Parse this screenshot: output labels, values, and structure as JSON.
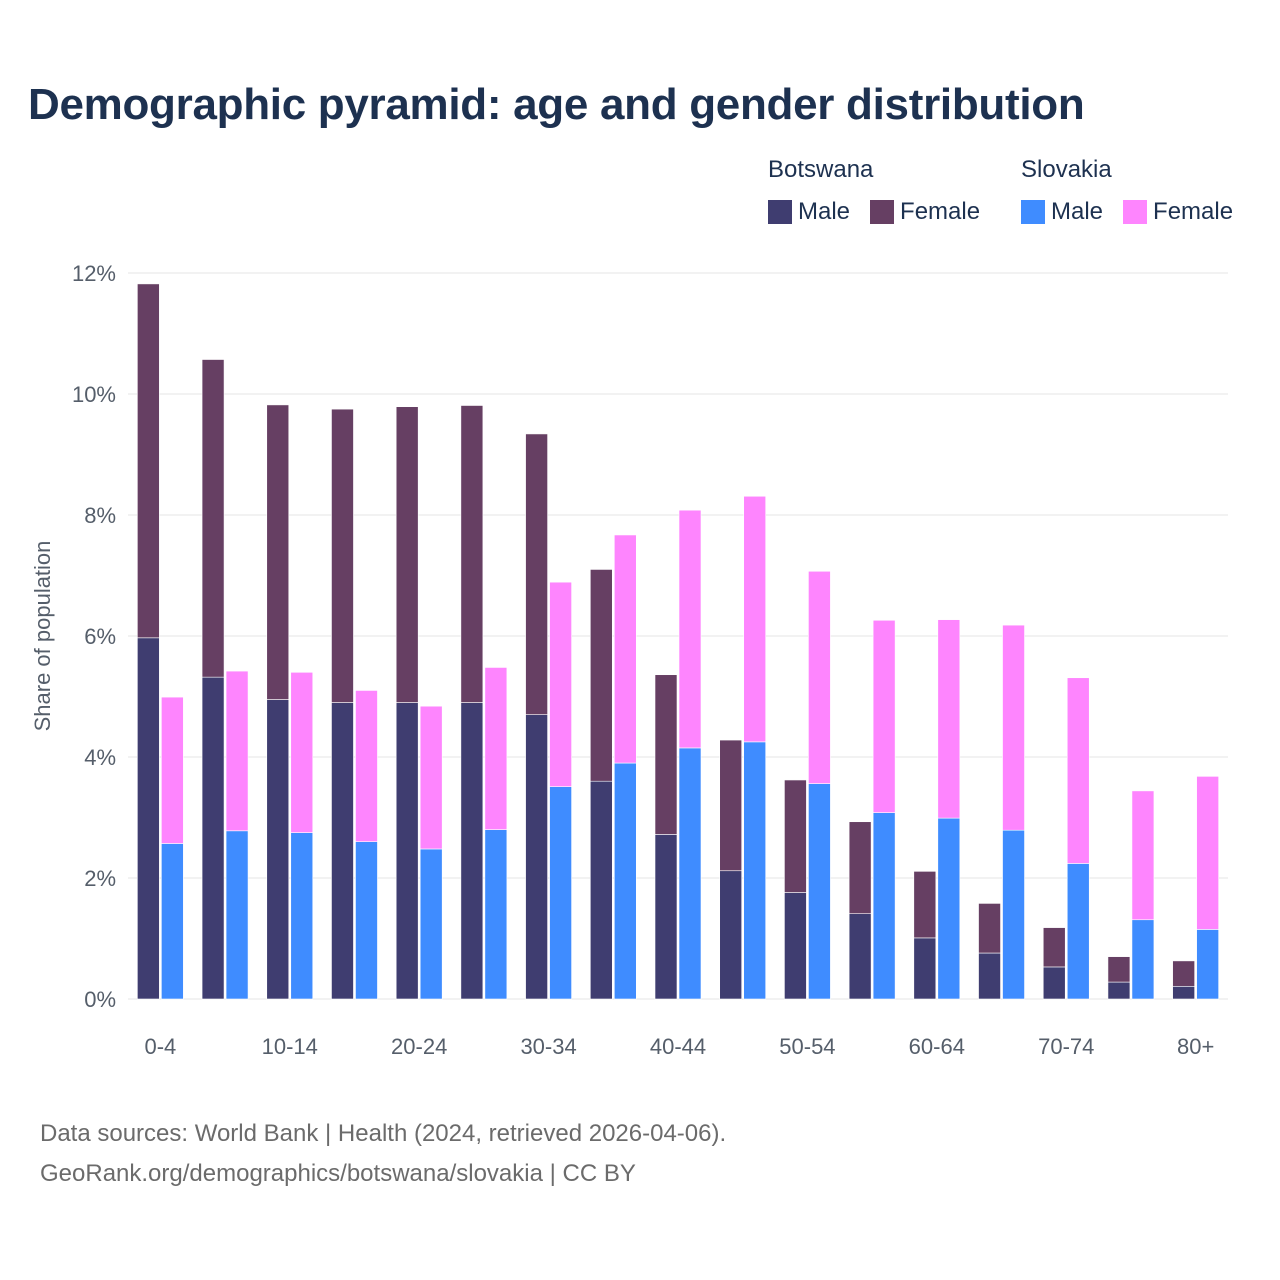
{
  "title": "Demographic pyramid: age and gender distribution",
  "legend": [
    {
      "country": "Botswana",
      "items": [
        {
          "label": "Male",
          "color": "#3f3d70"
        },
        {
          "label": "Female",
          "color": "#663f63"
        }
      ]
    },
    {
      "country": "Slovakia",
      "items": [
        {
          "label": "Male",
          "color": "#3f8cff"
        },
        {
          "label": "Female",
          "color": "#fe85fe"
        }
      ]
    }
  ],
  "chart_data": {
    "type": "bar",
    "stacked": true,
    "grouped_by": "country",
    "categories": [
      "0-4",
      "5-9",
      "10-14",
      "15-19",
      "20-24",
      "25-29",
      "30-34",
      "35-39",
      "40-44",
      "45-49",
      "50-54",
      "55-59",
      "60-64",
      "65-69",
      "70-74",
      "75-79",
      "80+"
    ],
    "x_tick_labels": [
      "0-4",
      "",
      "10-14",
      "",
      "20-24",
      "",
      "30-34",
      "",
      "40-44",
      "",
      "50-54",
      "",
      "60-64",
      "",
      "70-74",
      "",
      "80+"
    ],
    "ylabel": "Share of population",
    "ylim": [
      0,
      12
    ],
    "y_ticks": [
      0,
      2,
      4,
      6,
      8,
      10,
      12
    ],
    "y_tick_labels": [
      "0%",
      "2%",
      "4%",
      "6%",
      "8%",
      "10%",
      "12%"
    ],
    "grid": true,
    "series": [
      {
        "name": "Botswana Male",
        "group": "Botswana",
        "color": "#3f3d70",
        "values": [
          5.97,
          5.32,
          4.95,
          4.9,
          4.9,
          4.9,
          4.7,
          3.6,
          2.72,
          2.12,
          1.76,
          1.41,
          1.01,
          0.76,
          0.53,
          0.28,
          0.21
        ]
      },
      {
        "name": "Botswana Female",
        "group": "Botswana",
        "color": "#663f63",
        "values": [
          5.85,
          5.25,
          4.87,
          4.85,
          4.89,
          4.91,
          4.64,
          3.5,
          2.64,
          2.16,
          1.86,
          1.52,
          1.1,
          0.82,
          0.65,
          0.42,
          0.42
        ]
      },
      {
        "name": "Slovakia Male",
        "group": "Slovakia",
        "color": "#3f8cff",
        "values": [
          2.57,
          2.78,
          2.75,
          2.6,
          2.48,
          2.8,
          3.51,
          3.9,
          4.15,
          4.25,
          3.56,
          3.08,
          2.99,
          2.79,
          2.24,
          1.31,
          1.15
        ]
      },
      {
        "name": "Slovakia Female",
        "group": "Slovakia",
        "color": "#fe85fe",
        "values": [
          2.42,
          2.64,
          2.65,
          2.5,
          2.36,
          2.68,
          3.38,
          3.77,
          3.93,
          4.06,
          3.51,
          3.18,
          3.28,
          3.39,
          3.07,
          2.13,
          2.53
        ]
      }
    ]
  },
  "source": {
    "line1": "Data sources: World Bank | Health (2024, retrieved 2026-04-06).",
    "line2": "GeoRank.org/demographics/botswana/slovakia | CC BY"
  }
}
